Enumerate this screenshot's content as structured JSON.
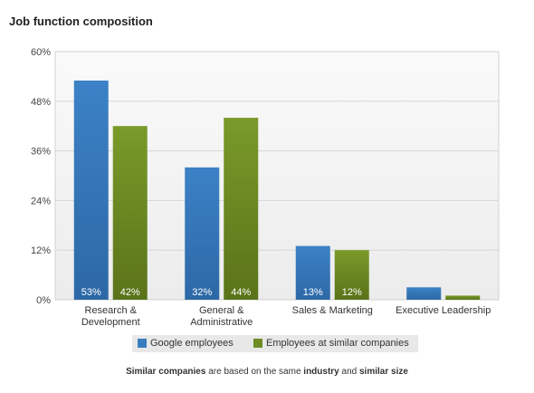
{
  "title": "Job function composition",
  "chart_data": {
    "type": "bar",
    "categories": [
      [
        "Research &",
        "Development"
      ],
      [
        "General &",
        "Administrative"
      ],
      [
        "Sales & Marketing"
      ],
      [
        "Executive Leadership"
      ]
    ],
    "series": [
      {
        "name": "Google employees",
        "values": [
          53,
          32,
          13,
          3
        ],
        "labels": [
          "53%",
          "32%",
          "13%",
          ""
        ],
        "color": "#3a7dbf"
      },
      {
        "name": "Employees at similar companies",
        "values": [
          42,
          44,
          12,
          1
        ],
        "labels": [
          "42%",
          "44%",
          "12%",
          ""
        ],
        "color": "#6e8c24"
      }
    ],
    "y_ticks": [
      "0%",
      "12%",
      "24%",
      "36%",
      "48%",
      "60%"
    ],
    "ylim": [
      0,
      60
    ],
    "grid": true,
    "legend_placement": "bottom"
  },
  "footnote": {
    "part1_bold": "Similar companies",
    "part2": " are based on the same ",
    "part3_bold": "industry",
    "part4": " and ",
    "part5_bold": "similar size"
  }
}
